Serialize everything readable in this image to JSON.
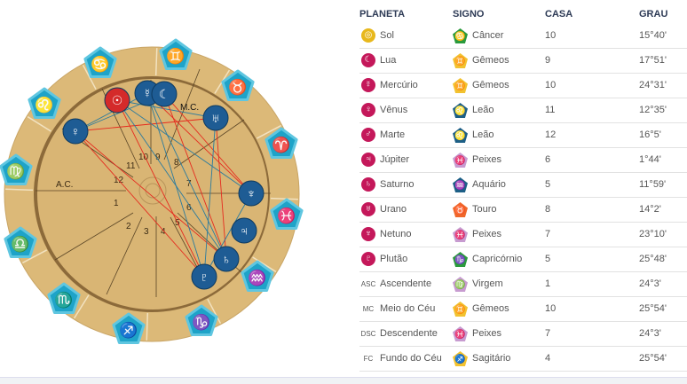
{
  "wheel": {
    "asc_label": "A.C.",
    "mc_label": "M.C.",
    "houses": [
      "1",
      "2",
      "3",
      "4",
      "5",
      "6",
      "7",
      "8",
      "9",
      "10",
      "11",
      "12"
    ],
    "signs": [
      {
        "name": "gemini",
        "glyph": "♊"
      },
      {
        "name": "taurus",
        "glyph": "♉"
      },
      {
        "name": "aries",
        "glyph": "♈"
      },
      {
        "name": "pisces",
        "glyph": "♓"
      },
      {
        "name": "aquarius",
        "glyph": "♒"
      },
      {
        "name": "capricorn",
        "glyph": "♑"
      },
      {
        "name": "sagittarius",
        "glyph": "♐"
      },
      {
        "name": "scorpio",
        "glyph": "♏"
      },
      {
        "name": "libra",
        "glyph": "♎"
      },
      {
        "name": "virgo",
        "glyph": "♍"
      },
      {
        "name": "leo",
        "glyph": "♌"
      },
      {
        "name": "cancer",
        "glyph": "♋"
      }
    ],
    "planets": [
      {
        "name": "sun",
        "glyph": "☉",
        "color": "#d42a2a"
      },
      {
        "name": "mercury",
        "glyph": "☿",
        "color": "#1e5c94"
      },
      {
        "name": "moon",
        "glyph": "☾",
        "color": "#1e5c94"
      },
      {
        "name": "uranus",
        "glyph": "♅",
        "color": "#1e5c94"
      },
      {
        "name": "venus",
        "glyph": "♀",
        "color": "#1e5c94"
      },
      {
        "name": "neptune",
        "glyph": "♆",
        "color": "#1e5c94"
      },
      {
        "name": "jupiter",
        "glyph": "♃",
        "color": "#1e5c94"
      },
      {
        "name": "saturn",
        "glyph": "♄",
        "color": "#1e5c94"
      },
      {
        "name": "pluto",
        "glyph": "♇",
        "color": "#1e5c94"
      }
    ],
    "aspects": [
      [
        "venus",
        "uranus",
        "#e52b1f"
      ],
      [
        "venus",
        "saturn",
        "#e52b1f"
      ],
      [
        "venus",
        "pluto",
        "#e52b1f"
      ],
      [
        "venus",
        "mercury",
        "#2b7b9e"
      ],
      [
        "venus",
        "moon",
        "#2b7b9e"
      ],
      [
        "sun",
        "pluto",
        "#e52b1f"
      ],
      [
        "sun",
        "saturn",
        "#2b7b9e"
      ],
      [
        "sun",
        "neptune",
        "#2b7b9e"
      ],
      [
        "sun",
        "uranus",
        "#2b7b9e"
      ],
      [
        "mercury",
        "neptune",
        "#e52b1f"
      ],
      [
        "mercury",
        "saturn",
        "#2b7b9e"
      ],
      [
        "moon",
        "saturn",
        "#e52b1f"
      ],
      [
        "moon",
        "neptune",
        "#e52b1f"
      ],
      [
        "uranus",
        "saturn",
        "#e52b1f"
      ],
      [
        "uranus",
        "pluto",
        "#2b7b9e"
      ],
      [
        "neptune",
        "pluto",
        "#2b7b9e"
      ],
      [
        "mercury",
        "pluto",
        "#2b7b9e"
      ]
    ]
  },
  "table": {
    "headers": {
      "planet": "PLANETA",
      "sign": "SIGNO",
      "house": "CASA",
      "degree": "GRAU"
    },
    "rows": [
      {
        "icon": "◎",
        "icon_color": "#e8b81c",
        "label": "Sol",
        "sign_icon": "♋",
        "sign_color": "#2a9a3c",
        "sign": "Câncer",
        "house": "10",
        "degree": "15°40'"
      },
      {
        "icon": "☾",
        "icon_color": "#c4185a",
        "label": "Lua",
        "sign_icon": "♊",
        "sign_color": "#f2c230",
        "sign": "Gêmeos",
        "house": "9",
        "degree": "17°51'"
      },
      {
        "icon": "☿",
        "icon_color": "#c4185a",
        "label": "Mercúrio",
        "sign_icon": "♊",
        "sign_color": "#f2c230",
        "sign": "Gêmeos",
        "house": "10",
        "degree": "24°31'"
      },
      {
        "icon": "♀",
        "icon_color": "#c4185a",
        "label": "Vênus",
        "sign_icon": "♌",
        "sign_color": "#1d5f86",
        "sign": "Leão",
        "house": "11",
        "degree": "12°35'"
      },
      {
        "icon": "♂",
        "icon_color": "#c4185a",
        "label": "Marte",
        "sign_icon": "♌",
        "sign_color": "#1d5f86",
        "sign": "Leão",
        "house": "12",
        "degree": "16°5'"
      },
      {
        "icon": "♃",
        "icon_color": "#c4185a",
        "label": "Júpiter",
        "sign_icon": "♓",
        "sign_color": "#c79bd0",
        "sign": "Peixes",
        "house": "6",
        "degree": "1°44'"
      },
      {
        "icon": "♄",
        "icon_color": "#c4185a",
        "label": "Saturno",
        "sign_icon": "♒",
        "sign_color": "#1d5f86",
        "sign": "Aquário",
        "house": "5",
        "degree": "11°59'"
      },
      {
        "icon": "♅",
        "icon_color": "#c4185a",
        "label": "Urano",
        "sign_icon": "♉",
        "sign_color": "#f0672a",
        "sign": "Touro",
        "house": "8",
        "degree": "14°2'"
      },
      {
        "icon": "♆",
        "icon_color": "#c4185a",
        "label": "Netuno",
        "sign_icon": "♓",
        "sign_color": "#c79bd0",
        "sign": "Peixes",
        "house": "7",
        "degree": "23°10'"
      },
      {
        "icon": "♇",
        "icon_color": "#c4185a",
        "label": "Plutão",
        "sign_icon": "♑",
        "sign_color": "#2a9a3c",
        "sign": "Capricórnio",
        "house": "5",
        "degree": "25°48'"
      },
      {
        "abbr": "ASC",
        "label": "Ascendente",
        "sign_icon": "♍",
        "sign_color": "#c79bd0",
        "sign": "Virgem",
        "house": "1",
        "degree": "24°3'"
      },
      {
        "abbr": "MC",
        "label": "Meio do Céu",
        "sign_icon": "♊",
        "sign_color": "#f2c230",
        "sign": "Gêmeos",
        "house": "10",
        "degree": "25°54'"
      },
      {
        "abbr": "DSC",
        "label": "Descendente",
        "sign_icon": "♓",
        "sign_color": "#c79bd0",
        "sign": "Peixes",
        "house": "7",
        "degree": "24°3'"
      },
      {
        "abbr": "FC",
        "label": "Fundo do Céu",
        "sign_icon": "♐",
        "sign_color": "#f2c230",
        "sign": "Sagitário",
        "house": "4",
        "degree": "25°54'"
      }
    ]
  }
}
